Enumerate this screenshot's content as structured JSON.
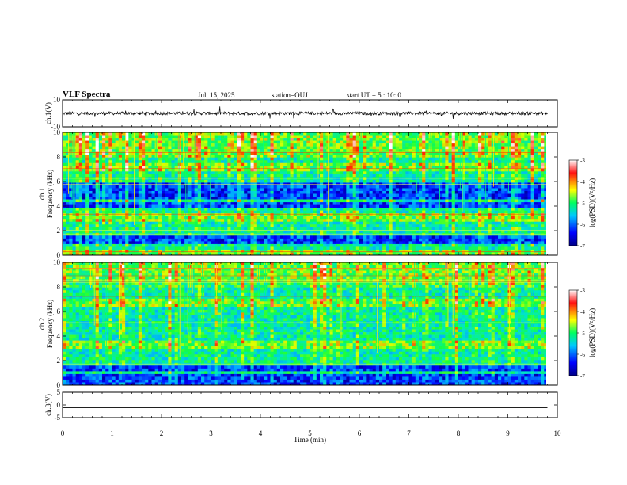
{
  "header": {
    "title": "VLF Spectra",
    "date": "Jul. 15, 2025",
    "station": "station=OUJ",
    "start": "start UT =  5 : 10: 0"
  },
  "chart_data": [
    {
      "type": "line",
      "name": "ch1-waveform",
      "ylabel": "ch.1(V)",
      "ylim": [
        -10,
        10
      ],
      "yticks": [
        "10",
        "-10"
      ],
      "baseline": 0,
      "x_range_min": [
        0,
        9.8
      ]
    },
    {
      "type": "heatmap",
      "name": "ch1-spectrogram",
      "ylabel_channel": "ch.1",
      "ylabel": "Frequency (kHz)",
      "ylim": [
        0,
        10
      ],
      "yticks": [
        "0",
        "2",
        "4",
        "6",
        "8",
        "10"
      ],
      "colorbar": {
        "label": "log(PSD)(V²/Hz)",
        "range": [
          -7,
          -3
        ],
        "ticks": [
          "-3",
          "-4",
          "-5",
          "-6",
          "-7"
        ]
      },
      "dark_bands_khz": [
        [
          4.5,
          6.0
        ],
        [
          3.8,
          4.4
        ],
        [
          1.0,
          1.7
        ]
      ],
      "bright_bands_khz": [
        [
          0.0,
          0.4
        ],
        [
          6.8,
          7.4
        ],
        [
          2.8,
          3.4
        ],
        [
          8.0,
          10.0
        ]
      ]
    },
    {
      "type": "heatmap",
      "name": "ch2-spectrogram",
      "ylabel_channel": "ch.2",
      "ylabel": "Frequency (kHz)",
      "ylim": [
        0,
        10
      ],
      "yticks": [
        "0",
        "2",
        "4",
        "6",
        "8",
        "10"
      ],
      "colorbar": {
        "label": "log(PSD)(V²/Hz)",
        "range": [
          -7,
          -3
        ],
        "ticks": [
          "-3",
          "-4",
          "-5",
          "-6",
          "-7"
        ]
      },
      "dark_bands_khz": [
        [
          0.0,
          0.9
        ],
        [
          1.2,
          1.6
        ]
      ],
      "bright_bands_khz": [
        [
          3.0,
          3.6
        ],
        [
          6.4,
          7.0
        ],
        [
          8.5,
          10.0
        ]
      ]
    },
    {
      "type": "line",
      "name": "ch3-waveform",
      "ylabel": "ch.3(V)",
      "ylim": [
        -5,
        5
      ],
      "yticks": [
        "5",
        "0",
        "-5"
      ],
      "baseline": -1.0,
      "x_range_min": [
        0,
        9.8
      ]
    }
  ],
  "xaxis": {
    "label": "Time (min)",
    "range": [
      0,
      10
    ],
    "ticks": [
      "0",
      "1",
      "2",
      "3",
      "4",
      "5",
      "6",
      "7",
      "8",
      "9",
      "10"
    ]
  }
}
